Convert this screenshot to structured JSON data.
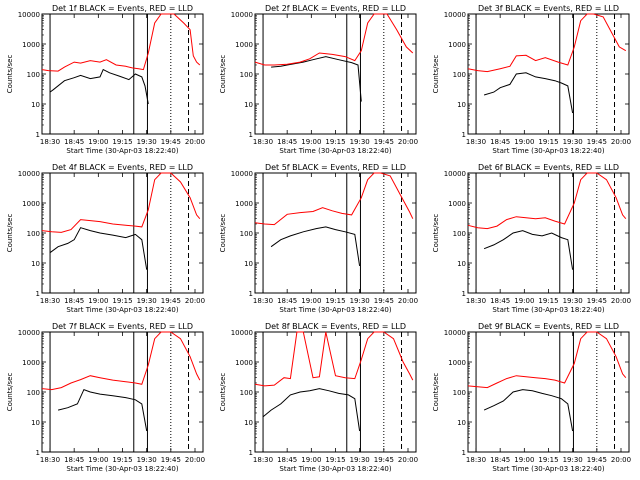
{
  "chart_data": [
    {
      "type": "line",
      "title": "Det 1f BLACK = Events, RED = LLD",
      "xlabel": "Start Time (30-Apr-03 18:22:40)",
      "ylabel": "Counts/sec",
      "x_ticks": [
        "18:30",
        "18:45",
        "19:00",
        "19:15",
        "19:30",
        "19:45",
        "20:00"
      ],
      "y_ticks": [
        "1",
        "10",
        "100",
        "1000",
        "10000"
      ],
      "ylim": [
        1,
        10000
      ],
      "yscale": "log",
      "series": [
        {
          "name": "Events",
          "color": "#000000",
          "x": [
            0.05,
            0.07,
            0.14,
            0.2,
            0.24,
            0.3,
            0.36,
            0.38,
            0.42,
            0.48,
            0.54,
            0.58,
            0.62,
            0.64,
            0.66
          ],
          "y": [
            25,
            30,
            60,
            75,
            90,
            70,
            80,
            140,
            110,
            85,
            65,
            100,
            80,
            40,
            10
          ]
        },
        {
          "name": "LLD",
          "color": "#ff0000",
          "x": [
            0,
            0.04,
            0.1,
            0.14,
            0.2,
            0.24,
            0.3,
            0.36,
            0.4,
            0.46,
            0.52,
            0.56,
            0.6,
            0.63,
            0.66,
            0.7,
            0.74,
            0.78,
            0.82,
            0.88,
            0.92,
            0.94,
            0.96,
            0.98
          ],
          "y": [
            140,
            130,
            125,
            170,
            250,
            230,
            280,
            250,
            300,
            200,
            180,
            160,
            150,
            140,
            500,
            5000,
            10000,
            10000,
            10000,
            5000,
            3000,
            400,
            250,
            200
          ]
        }
      ]
    },
    {
      "type": "line",
      "title": "Det 2f BLACK = Events, RED = LLD",
      "xlabel": "Start Time (30-Apr-03 18:22:40)",
      "ylabel": "Counts/sec",
      "x_ticks": [
        "18:30",
        "18:45",
        "19:00",
        "19:15",
        "19:30",
        "19:45",
        "20:00"
      ],
      "y_ticks": [
        "1",
        "10",
        "100",
        "1000",
        "10000"
      ],
      "ylim": [
        1,
        10000
      ],
      "yscale": "log",
      "series": [
        {
          "name": "Events",
          "color": "#000000",
          "x": [
            0.1,
            0.16,
            0.2,
            0.3,
            0.36,
            0.44,
            0.52,
            0.6,
            0.64,
            0.66
          ],
          "y": [
            170,
            180,
            200,
            250,
            300,
            380,
            300,
            240,
            200,
            12
          ]
        },
        {
          "name": "LLD",
          "color": "#ff0000",
          "x": [
            0,
            0.06,
            0.12,
            0.2,
            0.28,
            0.34,
            0.4,
            0.48,
            0.56,
            0.62,
            0.66,
            0.7,
            0.74,
            0.78,
            0.82,
            0.88,
            0.94,
            0.98
          ],
          "y": [
            250,
            200,
            200,
            210,
            250,
            320,
            500,
            450,
            380,
            280,
            600,
            5000,
            10000,
            10000,
            10000,
            3000,
            800,
            500
          ]
        }
      ]
    },
    {
      "type": "line",
      "title": "Det 3f BLACK = Events, RED = LLD",
      "xlabel": "Start Time (30-Apr-03 18:22:40)",
      "ylabel": "Counts/sec",
      "x_ticks": [
        "18:30",
        "18:45",
        "19:00",
        "19:15",
        "19:30",
        "19:45",
        "20:00"
      ],
      "y_ticks": [
        "1",
        "10",
        "100",
        "1000",
        "10000"
      ],
      "ylim": [
        1,
        10000
      ],
      "yscale": "log",
      "series": [
        {
          "name": "Events",
          "color": "#000000",
          "x": [
            0.1,
            0.16,
            0.2,
            0.26,
            0.3,
            0.36,
            0.42,
            0.48,
            0.54,
            0.58,
            0.62,
            0.65
          ],
          "y": [
            20,
            25,
            35,
            45,
            100,
            110,
            80,
            70,
            60,
            50,
            40,
            5
          ]
        },
        {
          "name": "LLD",
          "color": "#ff0000",
          "x": [
            0,
            0.06,
            0.12,
            0.2,
            0.26,
            0.3,
            0.36,
            0.42,
            0.48,
            0.56,
            0.62,
            0.66,
            0.7,
            0.74,
            0.78,
            0.84,
            0.9,
            0.94,
            0.98
          ],
          "y": [
            150,
            130,
            120,
            150,
            180,
            400,
            420,
            280,
            350,
            250,
            200,
            800,
            6000,
            10000,
            10000,
            8000,
            2000,
            800,
            600
          ]
        }
      ]
    },
    {
      "type": "line",
      "title": "Det 4f BLACK = Events, RED = LLD",
      "xlabel": "Start Time (30-Apr-03 18:22:40)",
      "ylabel": "Counts/sec",
      "x_ticks": [
        "18:30",
        "18:45",
        "19:00",
        "19:15",
        "19:30",
        "19:45",
        "20:00"
      ],
      "y_ticks": [
        "1",
        "10",
        "100",
        "1000",
        "10000"
      ],
      "ylim": [
        1,
        10000
      ],
      "yscale": "log",
      "series": [
        {
          "name": "Events",
          "color": "#000000",
          "x": [
            0.05,
            0.1,
            0.16,
            0.2,
            0.24,
            0.3,
            0.36,
            0.44,
            0.52,
            0.58,
            0.62,
            0.65
          ],
          "y": [
            22,
            35,
            45,
            60,
            150,
            120,
            100,
            85,
            70,
            90,
            60,
            6
          ]
        },
        {
          "name": "LLD",
          "color": "#ff0000",
          "x": [
            0,
            0.06,
            0.12,
            0.18,
            0.24,
            0.3,
            0.36,
            0.44,
            0.52,
            0.58,
            0.62,
            0.66,
            0.7,
            0.74,
            0.8,
            0.86,
            0.92,
            0.96,
            0.98
          ],
          "y": [
            120,
            110,
            105,
            130,
            280,
            260,
            240,
            200,
            180,
            170,
            160,
            600,
            6000,
            10000,
            10000,
            5000,
            1500,
            400,
            300
          ]
        }
      ]
    },
    {
      "type": "line",
      "title": "Det 5f BLACK = Events, RED = LLD",
      "xlabel": "Start Time (30-Apr-03 18:22:40)",
      "ylabel": "Counts/sec",
      "x_ticks": [
        "18:30",
        "18:45",
        "19:00",
        "19:15",
        "19:30",
        "19:45",
        "20:00"
      ],
      "y_ticks": [
        "1",
        "10",
        "100",
        "1000",
        "10000"
      ],
      "ylim": [
        1,
        10000
      ],
      "yscale": "log",
      "series": [
        {
          "name": "Events",
          "color": "#000000",
          "x": [
            0.1,
            0.16,
            0.22,
            0.3,
            0.38,
            0.44,
            0.5,
            0.56,
            0.62,
            0.65
          ],
          "y": [
            35,
            60,
            80,
            110,
            140,
            160,
            130,
            110,
            90,
            8
          ]
        },
        {
          "name": "LLD",
          "color": "#ff0000",
          "x": [
            0,
            0.06,
            0.12,
            0.2,
            0.28,
            0.36,
            0.42,
            0.48,
            0.54,
            0.6,
            0.66,
            0.7,
            0.74,
            0.78,
            0.84,
            0.9,
            0.96,
            0.98
          ],
          "y": [
            220,
            200,
            190,
            420,
            480,
            520,
            700,
            550,
            450,
            400,
            1500,
            6000,
            10000,
            10000,
            8000,
            2000,
            500,
            300
          ]
        }
      ]
    },
    {
      "type": "line",
      "title": "Det 6f BLACK = Events, RED = LLD",
      "xlabel": "Start Time (30-Apr-03 18:22:40)",
      "ylabel": "Counts/sec",
      "x_ticks": [
        "18:30",
        "18:45",
        "19:00",
        "19:15",
        "19:30",
        "19:45",
        "20:00"
      ],
      "y_ticks": [
        "1",
        "10",
        "100",
        "1000",
        "10000"
      ],
      "ylim": [
        1,
        10000
      ],
      "yscale": "log",
      "series": [
        {
          "name": "Events",
          "color": "#000000",
          "x": [
            0.1,
            0.16,
            0.22,
            0.28,
            0.34,
            0.4,
            0.46,
            0.52,
            0.58,
            0.62,
            0.65
          ],
          "y": [
            30,
            40,
            60,
            100,
            120,
            90,
            80,
            100,
            70,
            60,
            6
          ]
        },
        {
          "name": "LLD",
          "color": "#ff0000",
          "x": [
            0,
            0.06,
            0.12,
            0.18,
            0.24,
            0.3,
            0.36,
            0.42,
            0.48,
            0.54,
            0.6,
            0.66,
            0.7,
            0.74,
            0.8,
            0.86,
            0.92,
            0.96,
            0.98
          ],
          "y": [
            180,
            150,
            140,
            170,
            280,
            350,
            320,
            300,
            320,
            250,
            200,
            1000,
            6000,
            10000,
            10000,
            6000,
            1500,
            400,
            300
          ]
        }
      ]
    },
    {
      "type": "line",
      "title": "Det 7f BLACK = Events, RED = LLD",
      "xlabel": "Start Time (30-Apr-03 18:22:40)",
      "ylabel": "Counts/sec",
      "x_ticks": [
        "18:30",
        "18:45",
        "19:00",
        "19:15",
        "19:30",
        "19:45",
        "20:00"
      ],
      "y_ticks": [
        "1",
        "10",
        "100",
        "1000",
        "10000"
      ],
      "ylim": [
        1,
        10000
      ],
      "yscale": "log",
      "series": [
        {
          "name": "Events",
          "color": "#000000",
          "x": [
            0.1,
            0.16,
            0.22,
            0.26,
            0.3,
            0.36,
            0.44,
            0.52,
            0.58,
            0.62,
            0.65
          ],
          "y": [
            25,
            30,
            40,
            120,
            100,
            85,
            75,
            65,
            55,
            40,
            5
          ]
        },
        {
          "name": "LLD",
          "color": "#ff0000",
          "x": [
            0,
            0.06,
            0.12,
            0.18,
            0.24,
            0.3,
            0.36,
            0.44,
            0.52,
            0.58,
            0.62,
            0.66,
            0.7,
            0.74,
            0.8,
            0.86,
            0.92,
            0.96,
            0.98
          ],
          "y": [
            130,
            120,
            140,
            200,
            260,
            350,
            300,
            250,
            220,
            200,
            180,
            800,
            6000,
            10000,
            10000,
            6000,
            1500,
            400,
            250
          ]
        }
      ]
    },
    {
      "type": "line",
      "title": "Det 8f BLACK = Events, RED = LLD",
      "xlabel": "Start Time (30-Apr-03 18:22:40)",
      "ylabel": "Counts/sec",
      "x_ticks": [
        "18:30",
        "18:45",
        "19:00",
        "19:15",
        "19:30",
        "19:45",
        "20:00"
      ],
      "y_ticks": [
        "1",
        "10",
        "100",
        "1000",
        "10000"
      ],
      "ylim": [
        1,
        10000
      ],
      "yscale": "log",
      "series": [
        {
          "name": "Events",
          "color": "#000000",
          "x": [
            0.05,
            0.1,
            0.16,
            0.22,
            0.28,
            0.34,
            0.4,
            0.46,
            0.52,
            0.58,
            0.62,
            0.65
          ],
          "y": [
            15,
            25,
            40,
            80,
            100,
            110,
            130,
            110,
            90,
            80,
            60,
            5
          ]
        },
        {
          "name": "LLD",
          "color": "#ff0000",
          "x": [
            0,
            0.06,
            0.12,
            0.18,
            0.22,
            0.26,
            0.3,
            0.36,
            0.4,
            0.44,
            0.5,
            0.56,
            0.62,
            0.66,
            0.7,
            0.74,
            0.8,
            0.86,
            0.92,
            0.96,
            0.98
          ],
          "y": [
            180,
            160,
            170,
            300,
            280,
            10000,
            10000,
            300,
            320,
            10000,
            350,
            300,
            280,
            1200,
            6000,
            10000,
            10000,
            6000,
            1000,
            400,
            250
          ]
        }
      ]
    },
    {
      "type": "line",
      "title": "Det 9f BLACK = Events, RED = LLD",
      "xlabel": "Start Time (30-Apr-03 18:22:40)",
      "ylabel": "Counts/sec",
      "x_ticks": [
        "18:30",
        "18:45",
        "19:00",
        "19:15",
        "19:30",
        "19:45",
        "20:00"
      ],
      "y_ticks": [
        "1",
        "10",
        "100",
        "1000",
        "10000"
      ],
      "ylim": [
        1,
        10000
      ],
      "yscale": "log",
      "series": [
        {
          "name": "Events",
          "color": "#000000",
          "x": [
            0.1,
            0.16,
            0.22,
            0.28,
            0.34,
            0.4,
            0.46,
            0.52,
            0.58,
            0.62,
            0.65
          ],
          "y": [
            25,
            35,
            50,
            100,
            120,
            110,
            90,
            75,
            60,
            40,
            5
          ]
        },
        {
          "name": "LLD",
          "color": "#ff0000",
          "x": [
            0,
            0.06,
            0.12,
            0.18,
            0.24,
            0.3,
            0.36,
            0.42,
            0.48,
            0.54,
            0.6,
            0.66,
            0.7,
            0.74,
            0.8,
            0.86,
            0.92,
            0.96,
            0.98
          ],
          "y": [
            160,
            150,
            140,
            200,
            280,
            350,
            320,
            300,
            280,
            250,
            200,
            900,
            6000,
            10000,
            10000,
            6000,
            1500,
            400,
            300
          ]
        }
      ]
    }
  ]
}
